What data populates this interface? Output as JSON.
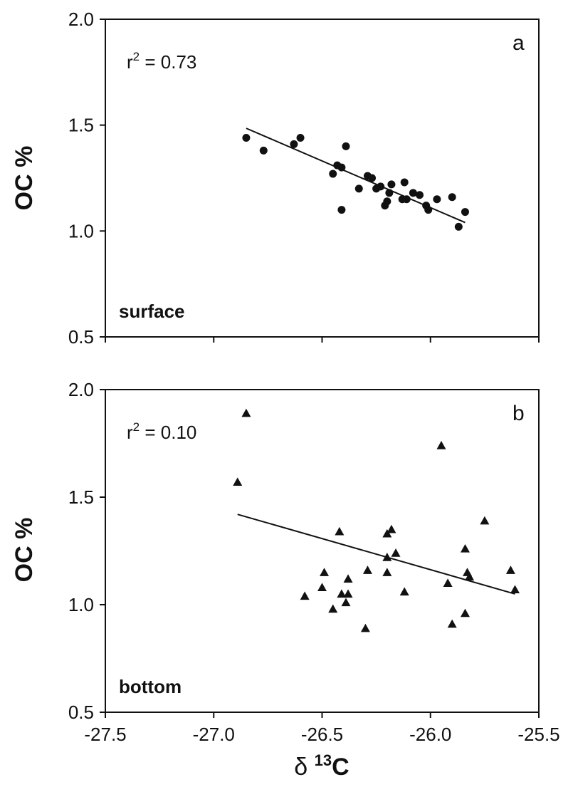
{
  "chart_data": [
    {
      "type": "scatter",
      "panel": "a",
      "label": "surface",
      "r2_prefix": "r",
      "r2_exp": "2",
      "r2_value": " = 0.73",
      "ylabel": "OC %",
      "xlabel": "",
      "xlim": [
        -27.5,
        -25.5
      ],
      "ylim": [
        0.5,
        2.0
      ],
      "x_ticks": [
        -27.5,
        -27.0,
        -26.5,
        -26.0,
        -25.5
      ],
      "y_ticks": [
        "0.5",
        "1.0",
        "1.5",
        "2.0"
      ],
      "marker": "circle",
      "points": [
        [
          -26.85,
          1.44
        ],
        [
          -26.77,
          1.38
        ],
        [
          -26.63,
          1.41
        ],
        [
          -26.6,
          1.44
        ],
        [
          -26.45,
          1.27
        ],
        [
          -26.43,
          1.31
        ],
        [
          -26.41,
          1.3
        ],
        [
          -26.41,
          1.1
        ],
        [
          -26.39,
          1.4
        ],
        [
          -26.33,
          1.2
        ],
        [
          -26.29,
          1.26
        ],
        [
          -26.27,
          1.25
        ],
        [
          -26.25,
          1.2
        ],
        [
          -26.23,
          1.21
        ],
        [
          -26.21,
          1.12
        ],
        [
          -26.2,
          1.14
        ],
        [
          -26.19,
          1.18
        ],
        [
          -26.18,
          1.22
        ],
        [
          -26.13,
          1.15
        ],
        [
          -26.12,
          1.23
        ],
        [
          -26.11,
          1.15
        ],
        [
          -26.08,
          1.18
        ],
        [
          -26.05,
          1.17
        ],
        [
          -26.02,
          1.12
        ],
        [
          -26.01,
          1.1
        ],
        [
          -25.97,
          1.15
        ],
        [
          -25.9,
          1.16
        ],
        [
          -25.87,
          1.02
        ],
        [
          -25.84,
          1.09
        ]
      ],
      "fit": {
        "x": [
          -26.85,
          -25.84
        ],
        "y": [
          1.485,
          1.04
        ]
      }
    },
    {
      "type": "scatter",
      "panel": "b",
      "label": "bottom",
      "r2_prefix": "r",
      "r2_exp": "2",
      "r2_value": " = 0.10",
      "ylabel": "OC %",
      "xlabel": "δ 13C",
      "xlabel_delta": "δ",
      "xlabel_sup": "13",
      "xlabel_sym": "C",
      "xlim": [
        -27.5,
        -25.5
      ],
      "ylim": [
        0.5,
        2.0
      ],
      "x_ticks": [
        "-27.5",
        "-27.0",
        "-26.5",
        "-26.0",
        "-25.5"
      ],
      "y_ticks": [
        "0.5",
        "1.0",
        "1.5",
        "2.0"
      ],
      "marker": "triangle",
      "points": [
        [
          -26.89,
          1.57
        ],
        [
          -26.85,
          1.89
        ],
        [
          -26.58,
          1.04
        ],
        [
          -26.5,
          1.08
        ],
        [
          -26.49,
          1.15
        ],
        [
          -26.45,
          0.98
        ],
        [
          -26.42,
          1.34
        ],
        [
          -26.41,
          1.05
        ],
        [
          -26.39,
          1.01
        ],
        [
          -26.38,
          1.12
        ],
        [
          -26.38,
          1.05
        ],
        [
          -26.3,
          0.89
        ],
        [
          -26.29,
          1.16
        ],
        [
          -26.2,
          1.15
        ],
        [
          -26.2,
          1.22
        ],
        [
          -26.2,
          1.33
        ],
        [
          -26.18,
          1.35
        ],
        [
          -26.16,
          1.24
        ],
        [
          -26.12,
          1.06
        ],
        [
          -25.95,
          1.74
        ],
        [
          -25.92,
          1.1
        ],
        [
          -25.9,
          0.91
        ],
        [
          -25.84,
          1.26
        ],
        [
          -25.84,
          0.96
        ],
        [
          -25.83,
          1.15
        ],
        [
          -25.82,
          1.13
        ],
        [
          -25.75,
          1.39
        ],
        [
          -25.63,
          1.16
        ],
        [
          -25.61,
          1.07
        ]
      ],
      "fit": {
        "x": [
          -26.89,
          -25.61
        ],
        "y": [
          1.42,
          1.05
        ]
      }
    }
  ]
}
